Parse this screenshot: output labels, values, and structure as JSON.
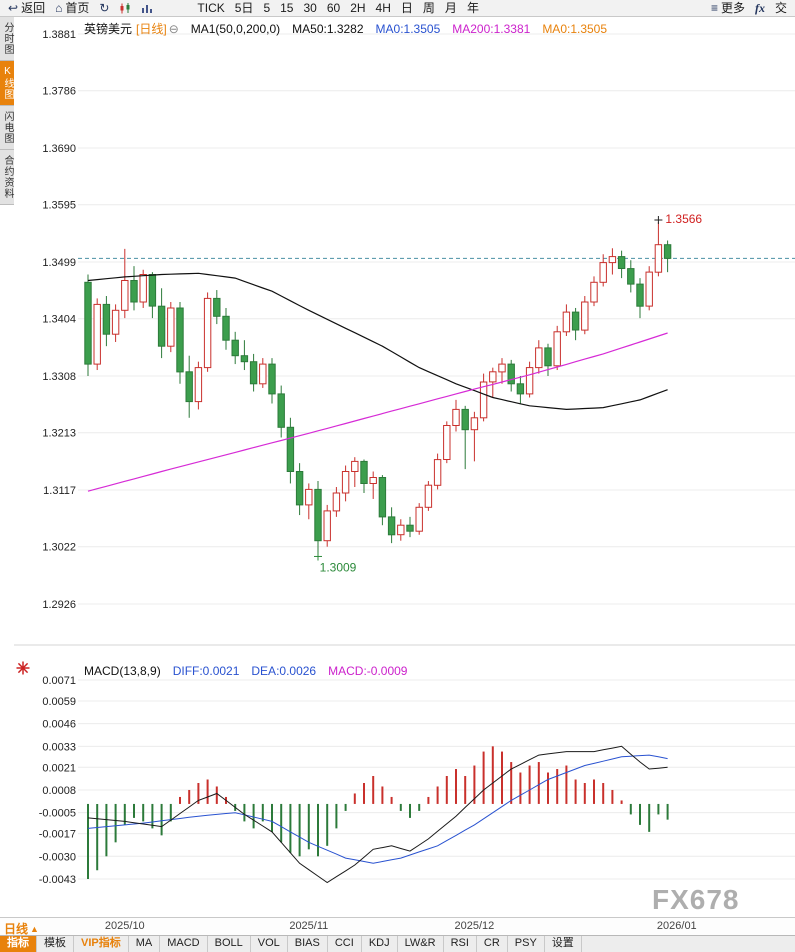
{
  "toolbar": {
    "items": [
      {
        "name": "back-button",
        "icon": "back-arrow-icon",
        "label": "返回"
      },
      {
        "name": "home-button",
        "icon": "home-icon",
        "label": "首页"
      },
      {
        "name": "refresh-button",
        "icon": "refresh-icon",
        "label": ""
      },
      {
        "name": "candlestick-chart-button",
        "icon": "candlestick-icon",
        "label": ""
      },
      {
        "name": "volume-chart-button",
        "icon": "volume-icon",
        "label": ""
      },
      {
        "name": "interval-tick",
        "label": "TICK"
      },
      {
        "name": "interval-5day",
        "label": "5日"
      },
      {
        "name": "interval-5min",
        "label": "5"
      },
      {
        "name": "interval-15min",
        "label": "15"
      },
      {
        "name": "interval-30min",
        "label": "30"
      },
      {
        "name": "interval-60min",
        "label": "60"
      },
      {
        "name": "interval-2h",
        "label": "2H"
      },
      {
        "name": "interval-4h",
        "label": "4H"
      },
      {
        "name": "interval-day",
        "label": "日"
      },
      {
        "name": "interval-week",
        "label": "周"
      },
      {
        "name": "interval-month",
        "label": "月"
      },
      {
        "name": "interval-year",
        "label": "年"
      },
      {
        "name": "more-menu-button",
        "icon": "menu-icon",
        "label": "更多"
      },
      {
        "name": "fx-button",
        "label": "fx",
        "cls": "tb-fx"
      },
      {
        "name": "trade-button",
        "label": "交"
      }
    ]
  },
  "sidebar": {
    "tabs": [
      {
        "name": "sidebar-tab-timeshare",
        "label": "分时图",
        "active": false
      },
      {
        "name": "sidebar-tab-kline",
        "label": "K线图",
        "active": true
      },
      {
        "name": "sidebar-tab-lightning",
        "label": "闪电图",
        "active": false
      },
      {
        "name": "sidebar-tab-contract-info",
        "label": "合约资料",
        "active": false
      }
    ]
  },
  "price_header": {
    "symbol": "英镑美元",
    "period": "[日线]",
    "collapse_icon": "⊖",
    "ma_settings": "MA1(50,0,200,0)",
    "ma50": "MA50:1.3282",
    "ma0_blue": "MA0:1.3505",
    "ma200": "MA200:1.3381",
    "ma0_orange": "MA0:1.3505"
  },
  "macd_header": {
    "name": "MACD(13,8,9)",
    "diff": "DIFF:0.0021",
    "dea": "DEA:0.0026",
    "macd": "MACD:-0.0009"
  },
  "xaxis": {
    "period_label": "日线",
    "period_arrow": "▲"
  },
  "bottom_tabs": [
    {
      "name": "tab-indicator",
      "label": "指标",
      "cls": "active"
    },
    {
      "name": "tab-template",
      "label": "模板"
    },
    {
      "name": "tab-vip-indicator",
      "label": "VIP指标",
      "cls": "vip"
    },
    {
      "name": "tab-ma",
      "label": "MA"
    },
    {
      "name": "tab-macd",
      "label": "MACD"
    },
    {
      "name": "tab-boll",
      "label": "BOLL"
    },
    {
      "name": "tab-vol",
      "label": "VOL"
    },
    {
      "name": "tab-bias",
      "label": "BIAS"
    },
    {
      "name": "tab-cci",
      "label": "CCI"
    },
    {
      "name": "tab-kdj",
      "label": "KDJ"
    },
    {
      "name": "tab-lwr",
      "label": "LW&R"
    },
    {
      "name": "tab-rsi",
      "label": "RSI"
    },
    {
      "name": "tab-cr",
      "label": "CR"
    },
    {
      "name": "tab-psy",
      "label": "PSY"
    },
    {
      "name": "tab-settings",
      "label": "设置"
    }
  ],
  "watermark": "FX678",
  "colors": {
    "up": "#c9302c",
    "down": "#3c9e4d",
    "down_stroke": "#2c7a3a",
    "ma_fast": "#d62bd6",
    "ma_slow": "#111111",
    "diff": "#1a1a1a",
    "dea": "#2952d0",
    "dashed": "#4a90a4",
    "grid": "#ececec",
    "accent": "#e8820c",
    "annotation_high": "#d02020",
    "annotation_low": "#2c8a3a"
  },
  "chart_data": {
    "type": "candlestick+macd",
    "symbol": "英镑美元",
    "timeframe": "日线",
    "price_axis_ticks": [
      "1.3881",
      "1.3786",
      "1.3690",
      "1.3595",
      "1.3499",
      "1.3404",
      "1.3308",
      "1.3213",
      "1.3117",
      "1.3022",
      "1.2926"
    ],
    "macd_axis_ticks": [
      "0.0071",
      "0.0059",
      "0.0046",
      "0.0033",
      "0.0021",
      "0.0008",
      "-0.0005",
      "-0.0017",
      "-0.0030",
      "-0.0043"
    ],
    "dashed_level": 1.3505,
    "annotations": {
      "high": {
        "label": "1.3566",
        "value": 1.3566,
        "index": 62
      },
      "low": {
        "label": "1.3009",
        "value": 1.3009,
        "index": 25
      }
    },
    "month_ticks": [
      {
        "label": "2025/10",
        "index": 4
      },
      {
        "label": "2025/11",
        "index": 24
      },
      {
        "label": "2025/12",
        "index": 42
      },
      {
        "label": "2026/01",
        "index": 64
      }
    ],
    "candles": [
      [
        1.3465,
        1.3478,
        1.3308,
        1.3328
      ],
      [
        1.3328,
        1.3438,
        1.3318,
        1.3428
      ],
      [
        1.3428,
        1.3442,
        1.3358,
        1.3378
      ],
      [
        1.3378,
        1.3428,
        1.3365,
        1.3418
      ],
      [
        1.3418,
        1.3521,
        1.3405,
        1.3468
      ],
      [
        1.3468,
        1.3492,
        1.3418,
        1.3432
      ],
      [
        1.3432,
        1.3486,
        1.3422,
        1.3478
      ],
      [
        1.3478,
        1.3482,
        1.3405,
        1.3425
      ],
      [
        1.3425,
        1.3455,
        1.3338,
        1.3358
      ],
      [
        1.3358,
        1.3432,
        1.3348,
        1.3422
      ],
      [
        1.3422,
        1.3432,
        1.3295,
        1.3315
      ],
      [
        1.3315,
        1.3342,
        1.3238,
        1.3265
      ],
      [
        1.3265,
        1.3332,
        1.3252,
        1.3322
      ],
      [
        1.3322,
        1.3448,
        1.3315,
        1.3438
      ],
      [
        1.3438,
        1.3452,
        1.3395,
        1.3408
      ],
      [
        1.3408,
        1.3422,
        1.3352,
        1.3368
      ],
      [
        1.3368,
        1.3382,
        1.3328,
        1.3342
      ],
      [
        1.3342,
        1.3368,
        1.3318,
        1.3332
      ],
      [
        1.3332,
        1.3345,
        1.3282,
        1.3295
      ],
      [
        1.3295,
        1.3338,
        1.3288,
        1.3328
      ],
      [
        1.3328,
        1.3338,
        1.3262,
        1.3278
      ],
      [
        1.3278,
        1.3292,
        1.3205,
        1.3222
      ],
      [
        1.3222,
        1.3238,
        1.3128,
        1.3148
      ],
      [
        1.3148,
        1.3162,
        1.3075,
        1.3092
      ],
      [
        1.3092,
        1.3128,
        1.3068,
        1.3118
      ],
      [
        1.3118,
        1.3132,
        1.3009,
        1.3032
      ],
      [
        1.3032,
        1.3092,
        1.3022,
        1.3082
      ],
      [
        1.3082,
        1.3122,
        1.3072,
        1.3112
      ],
      [
        1.3112,
        1.3158,
        1.3098,
        1.3148
      ],
      [
        1.3148,
        1.3172,
        1.3122,
        1.3165
      ],
      [
        1.3165,
        1.3168,
        1.3112,
        1.3128
      ],
      [
        1.3128,
        1.3148,
        1.3102,
        1.3138
      ],
      [
        1.3138,
        1.3142,
        1.3058,
        1.3072
      ],
      [
        1.3072,
        1.3088,
        1.3028,
        1.3042
      ],
      [
        1.3042,
        1.3068,
        1.3032,
        1.3058
      ],
      [
        1.3058,
        1.3072,
        1.3038,
        1.3048
      ],
      [
        1.3048,
        1.3095,
        1.3042,
        1.3088
      ],
      [
        1.3088,
        1.3132,
        1.3082,
        1.3125
      ],
      [
        1.3125,
        1.3178,
        1.3118,
        1.3168
      ],
      [
        1.3168,
        1.3232,
        1.3162,
        1.3225
      ],
      [
        1.3225,
        1.3268,
        1.3215,
        1.3252
      ],
      [
        1.3252,
        1.3258,
        1.3152,
        1.3218
      ],
      [
        1.3218,
        1.3248,
        1.3165,
        1.3238
      ],
      [
        1.3238,
        1.3312,
        1.3232,
        1.3298
      ],
      [
        1.3298,
        1.3322,
        1.3272,
        1.3315
      ],
      [
        1.3315,
        1.3338,
        1.3295,
        1.3328
      ],
      [
        1.3328,
        1.3335,
        1.3282,
        1.3295
      ],
      [
        1.3295,
        1.3308,
        1.3262,
        1.3278
      ],
      [
        1.3278,
        1.3332,
        1.3272,
        1.3322
      ],
      [
        1.3322,
        1.3368,
        1.3312,
        1.3355
      ],
      [
        1.3355,
        1.3362,
        1.3308,
        1.3325
      ],
      [
        1.3325,
        1.3392,
        1.3318,
        1.3382
      ],
      [
        1.3382,
        1.3428,
        1.3375,
        1.3415
      ],
      [
        1.3415,
        1.3422,
        1.3368,
        1.3385
      ],
      [
        1.3385,
        1.3442,
        1.3378,
        1.3432
      ],
      [
        1.3432,
        1.3475,
        1.3425,
        1.3465
      ],
      [
        1.3465,
        1.3512,
        1.3458,
        1.3498
      ],
      [
        1.3498,
        1.3522,
        1.3478,
        1.3508
      ],
      [
        1.3508,
        1.3518,
        1.3472,
        1.3488
      ],
      [
        1.3488,
        1.3502,
        1.3448,
        1.3462
      ],
      [
        1.3462,
        1.3472,
        1.3405,
        1.3425
      ],
      [
        1.3425,
        1.3492,
        1.3418,
        1.3482
      ],
      [
        1.3482,
        1.3566,
        1.3475,
        1.3528
      ],
      [
        1.3528,
        1.3535,
        1.3482,
        1.3505
      ]
    ],
    "ma_slow_keypoints": [
      [
        0,
        1.3468
      ],
      [
        4,
        1.3474
      ],
      [
        8,
        1.3478
      ],
      [
        12,
        1.348
      ],
      [
        16,
        1.3472
      ],
      [
        20,
        1.345
      ],
      [
        24,
        1.3418
      ],
      [
        28,
        1.3388
      ],
      [
        32,
        1.3358
      ],
      [
        36,
        1.3322
      ],
      [
        40,
        1.3295
      ],
      [
        44,
        1.3272
      ],
      [
        48,
        1.3258
      ],
      [
        52,
        1.3252
      ],
      [
        56,
        1.3255
      ],
      [
        60,
        1.3268
      ],
      [
        63,
        1.3285
      ]
    ],
    "ma_fast_keypoints": [
      [
        0,
        1.3115
      ],
      [
        8,
        1.3148
      ],
      [
        16,
        1.318
      ],
      [
        24,
        1.3212
      ],
      [
        32,
        1.3245
      ],
      [
        40,
        1.3278
      ],
      [
        48,
        1.331
      ],
      [
        56,
        1.3345
      ],
      [
        63,
        1.338
      ]
    ],
    "macd": {
      "hist": [
        -0.0043,
        -0.0038,
        -0.003,
        -0.0022,
        -0.0012,
        -0.0008,
        -0.001,
        -0.0014,
        -0.0018,
        -0.001,
        0.0004,
        0.0008,
        0.0012,
        0.0014,
        0.001,
        0.0004,
        -0.0004,
        -0.001,
        -0.0014,
        -0.001,
        -0.0016,
        -0.0022,
        -0.0028,
        -0.003,
        -0.0026,
        -0.003,
        -0.0024,
        -0.0014,
        -0.0004,
        0.0006,
        0.0012,
        0.0016,
        0.001,
        0.0004,
        -0.0004,
        -0.0008,
        -0.0004,
        0.0004,
        0.001,
        0.0016,
        0.002,
        0.0016,
        0.0022,
        0.003,
        0.0033,
        0.003,
        0.0024,
        0.0018,
        0.0022,
        0.0024,
        0.0018,
        0.002,
        0.0022,
        0.0014,
        0.0012,
        0.0014,
        0.0012,
        0.0008,
        0.0002,
        -0.0006,
        -0.0012,
        -0.0016,
        -0.0006,
        -0.0009
      ],
      "diff_keypoints": [
        [
          0,
          -0.0008
        ],
        [
          4,
          -0.001
        ],
        [
          8,
          -0.0013
        ],
        [
          12,
          0.0002
        ],
        [
          14,
          0.0006
        ],
        [
          17,
          -0.0006
        ],
        [
          20,
          -0.0016
        ],
        [
          23,
          -0.0034
        ],
        [
          26,
          -0.0045
        ],
        [
          29,
          -0.0035
        ],
        [
          31,
          -0.0026
        ],
        [
          33,
          -0.0024
        ],
        [
          35,
          -0.0027
        ],
        [
          37,
          -0.002
        ],
        [
          40,
          -0.0007
        ],
        [
          43,
          0.0008
        ],
        [
          46,
          0.002
        ],
        [
          49,
          0.0028
        ],
        [
          52,
          0.003
        ],
        [
          55,
          0.003
        ],
        [
          58,
          0.0033
        ],
        [
          60,
          0.0024
        ],
        [
          61,
          0.002
        ],
        [
          63,
          0.0021
        ]
      ],
      "dea_keypoints": [
        [
          0,
          -0.0014
        ],
        [
          6,
          -0.0011
        ],
        [
          12,
          -0.0007
        ],
        [
          16,
          -0.0005
        ],
        [
          20,
          -0.001
        ],
        [
          24,
          -0.0022
        ],
        [
          28,
          -0.0031
        ],
        [
          31,
          -0.0034
        ],
        [
          34,
          -0.0031
        ],
        [
          38,
          -0.0024
        ],
        [
          42,
          -0.0012
        ],
        [
          46,
          0.0002
        ],
        [
          50,
          0.0014
        ],
        [
          54,
          0.0022
        ],
        [
          58,
          0.0027
        ],
        [
          61,
          0.0028
        ],
        [
          63,
          0.0026
        ]
      ]
    }
  }
}
